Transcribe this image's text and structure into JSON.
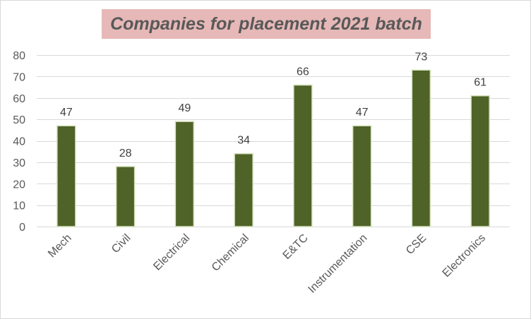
{
  "chart_data": {
    "type": "bar",
    "title": "Companies for placement 2021 batch",
    "xlabel": "",
    "ylabel": "",
    "categories": [
      "Mech",
      "Civil",
      "Electrical",
      "Chemical",
      "E&TC",
      "Instrumentation",
      "CSE",
      "Electronics"
    ],
    "values": [
      47,
      28,
      49,
      34,
      66,
      47,
      73,
      61
    ],
    "ylim": [
      0,
      80
    ],
    "yticks": [
      0,
      10,
      20,
      30,
      40,
      50,
      60,
      70,
      80
    ],
    "grid": true,
    "legend": "none",
    "data_labels": true
  },
  "colors": {
    "bar_fill": "#4f6228",
    "bar_stroke": "#d6e3bc",
    "title_background": "#e6b8b7",
    "title_text": "#595959",
    "gridline": "#d9d9d9"
  }
}
